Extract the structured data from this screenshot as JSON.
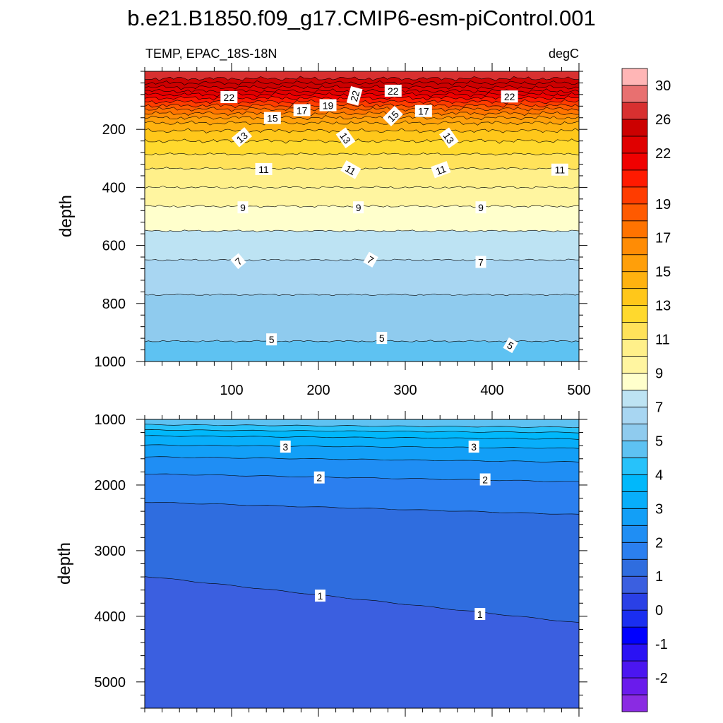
{
  "title": "b.e21.B1850.f09_g17.CMIP6-esm-piControl.001",
  "chart_data": {
    "type": "contour",
    "variable_label": "TEMP, EPAC_18S-18N",
    "units": "degC",
    "x_tick_labels": [
      "100",
      "200",
      "300",
      "400",
      "500"
    ],
    "xlim": [
      0,
      500
    ],
    "upper_panel": {
      "ylabel": "depth",
      "ylim": [
        0,
        1000
      ],
      "y_ticks": [
        200,
        400,
        600,
        800,
        1000
      ],
      "y_tick_labels": [
        "200",
        "400",
        "600",
        "800",
        "1000"
      ],
      "contour_depths": [
        {
          "value": 5,
          "depth": 930
        },
        {
          "value": 6,
          "depth": 770
        },
        {
          "value": 7,
          "depth": 650
        },
        {
          "value": 8,
          "depth": 550
        },
        {
          "value": 9,
          "depth": 465
        },
        {
          "value": 10,
          "depth": 400
        },
        {
          "value": 11,
          "depth": 335
        },
        {
          "value": 12,
          "depth": 285
        },
        {
          "value": 13,
          "depth": 240
        },
        {
          "value": 14,
          "depth": 205
        },
        {
          "value": 15,
          "depth": 178
        },
        {
          "value": 16,
          "depth": 160
        },
        {
          "value": 17,
          "depth": 145
        },
        {
          "value": 18,
          "depth": 130
        },
        {
          "value": 19,
          "depth": 118
        },
        {
          "value": 20,
          "depth": 105
        },
        {
          "value": 21,
          "depth": 92
        },
        {
          "value": 22,
          "depth": 80
        },
        {
          "value": 23,
          "depth": 68
        },
        {
          "value": 24,
          "depth": 55
        },
        {
          "value": 25,
          "depth": 40
        },
        {
          "value": 26,
          "depth": 25
        }
      ],
      "contour_labels": [
        {
          "text": "22",
          "x": 97,
          "depth": 90,
          "rotate": 0
        },
        {
          "text": "22",
          "x": 242,
          "depth": 85,
          "rotate": -75
        },
        {
          "text": "22",
          "x": 286,
          "depth": 68,
          "rotate": 0
        },
        {
          "text": "22",
          "x": 420,
          "depth": 88,
          "rotate": 0
        },
        {
          "text": "15",
          "x": 147,
          "depth": 162,
          "rotate": 0
        },
        {
          "text": "17",
          "x": 181,
          "depth": 135,
          "rotate": 0
        },
        {
          "text": "19",
          "x": 211,
          "depth": 118,
          "rotate": 0
        },
        {
          "text": "15",
          "x": 286,
          "depth": 155,
          "rotate": -45
        },
        {
          "text": "17",
          "x": 321,
          "depth": 138,
          "rotate": 0
        },
        {
          "text": "13",
          "x": 112,
          "depth": 228,
          "rotate": -40
        },
        {
          "text": "13",
          "x": 231,
          "depth": 230,
          "rotate": 55
        },
        {
          "text": "13",
          "x": 350,
          "depth": 230,
          "rotate": 55
        },
        {
          "text": "11",
          "x": 137,
          "depth": 338,
          "rotate": 0
        },
        {
          "text": "11",
          "x": 237,
          "depth": 340,
          "rotate": 30
        },
        {
          "text": "11",
          "x": 341,
          "depth": 340,
          "rotate": -20
        },
        {
          "text": "11",
          "x": 478,
          "depth": 340,
          "rotate": 0
        },
        {
          "text": "9",
          "x": 113,
          "depth": 470,
          "rotate": 0
        },
        {
          "text": "9",
          "x": 246,
          "depth": 470,
          "rotate": 0
        },
        {
          "text": "9",
          "x": 387,
          "depth": 470,
          "rotate": 0
        },
        {
          "text": "7",
          "x": 108,
          "depth": 655,
          "rotate": -40
        },
        {
          "text": "7",
          "x": 260,
          "depth": 650,
          "rotate": 30
        },
        {
          "text": "7",
          "x": 387,
          "depth": 658,
          "rotate": 0
        },
        {
          "text": "5",
          "x": 146,
          "depth": 925,
          "rotate": 0
        },
        {
          "text": "5",
          "x": 273,
          "depth": 920,
          "rotate": 0
        },
        {
          "text": "5",
          "x": 421,
          "depth": 945,
          "rotate": 30
        }
      ]
    },
    "lower_panel": {
      "ylabel": "depth",
      "ylim": [
        1000,
        5400
      ],
      "y_ticks": [
        1000,
        2000,
        3000,
        4000,
        5000
      ],
      "y_tick_labels": [
        "1000",
        "2000",
        "3000",
        "4000",
        "5000"
      ],
      "contour_depths": [
        {
          "value": 4.5,
          "depth_left": 1080,
          "depth_right": 1120
        },
        {
          "value": 4,
          "depth_left": 1160,
          "depth_right": 1200
        },
        {
          "value": 3.5,
          "depth_left": 1250,
          "depth_right": 1300
        },
        {
          "value": 3,
          "depth_left": 1390,
          "depth_right": 1440
        },
        {
          "value": 2.5,
          "depth_left": 1570,
          "depth_right": 1650
        },
        {
          "value": 2,
          "depth_left": 1830,
          "depth_right": 1950
        },
        {
          "value": 1.5,
          "depth_left": 2260,
          "depth_right": 2450
        },
        {
          "value": 1,
          "depth_left": 3390,
          "depth_right": 4100
        }
      ],
      "contour_labels": [
        {
          "text": "3",
          "x": 162,
          "depth": 1420,
          "rotate": 0
        },
        {
          "text": "3",
          "x": 379,
          "depth": 1420,
          "rotate": 0
        },
        {
          "text": "2",
          "x": 201,
          "depth": 1890,
          "rotate": 0
        },
        {
          "text": "2",
          "x": 392,
          "depth": 1920,
          "rotate": 0
        },
        {
          "text": "1",
          "x": 202,
          "depth": 3690,
          "rotate": 0
        },
        {
          "text": "1",
          "x": 386,
          "depth": 3970,
          "rotate": 0
        }
      ]
    },
    "colorbar": {
      "levels": [
        -2.5,
        -2,
        -1.5,
        -1,
        -0.5,
        0,
        0.5,
        1,
        1.5,
        2,
        2.5,
        3,
        3.5,
        4,
        4.5,
        5,
        6,
        7,
        8,
        9,
        10,
        11,
        12,
        13,
        14,
        15,
        16,
        17,
        18,
        19,
        20,
        21,
        22,
        24,
        26,
        28,
        30
      ],
      "colors": [
        "#8a2be2",
        "#6a1bec",
        "#4b16f0",
        "#2a12f4",
        "#0000ff",
        "#1a2ef0",
        "#2a40e6",
        "#3b5fe0",
        "#2f6ddf",
        "#2b7fef",
        "#1f8ef4",
        "#129ff7",
        "#08aefa",
        "#00b8fb",
        "#27c2fa",
        "#5ec2f2",
        "#8fcbee",
        "#a8d6f2",
        "#bde3f3",
        "#ffffcc",
        "#fff5a0",
        "#fff08a",
        "#ffe25a",
        "#ffd92d",
        "#ffc71a",
        "#ffb20f",
        "#ff9f0a",
        "#ff8c05",
        "#ff7300",
        "#ff5a00",
        "#ff3c00",
        "#ff1a00",
        "#f00000",
        "#e00000",
        "#cc0000",
        "#d83030",
        "#e87070",
        "#ffb6b6"
      ],
      "tick_labels": [
        {
          "text": "-2",
          "value": -2
        },
        {
          "text": "-1",
          "value": -1
        },
        {
          "text": "0",
          "value": 0
        },
        {
          "text": "1",
          "value": 1
        },
        {
          "text": "2",
          "value": 2
        },
        {
          "text": "3",
          "value": 3
        },
        {
          "text": "4",
          "value": 4
        },
        {
          "text": "5",
          "value": 5
        },
        {
          "text": "7",
          "value": 7
        },
        {
          "text": "9",
          "value": 9
        },
        {
          "text": "11",
          "value": 11
        },
        {
          "text": "13",
          "value": 13
        },
        {
          "text": "15",
          "value": 15
        },
        {
          "text": "17",
          "value": 17
        },
        {
          "text": "19",
          "value": 19
        },
        {
          "text": "22",
          "value": 22
        },
        {
          "text": "26",
          "value": 26
        },
        {
          "text": "30",
          "value": 30
        }
      ]
    }
  }
}
